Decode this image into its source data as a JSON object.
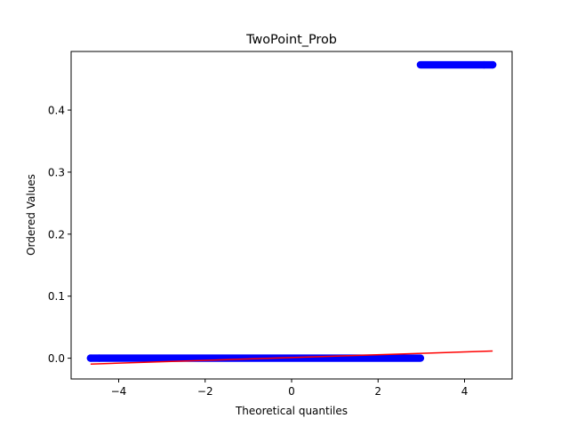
{
  "chart_data": {
    "type": "scatter",
    "title": "TwoPoint_Prob",
    "xlabel": "Theoretical quantiles",
    "ylabel": "Ordered Values",
    "xlim": [
      -5.1,
      5.1
    ],
    "ylim": [
      -0.0335,
      0.4945
    ],
    "xticks": [
      -4,
      -2,
      0,
      2,
      4
    ],
    "yticks": [
      0.0,
      0.1,
      0.2,
      0.3,
      0.4
    ],
    "xtick_labels": [
      "−4",
      "−2",
      "0",
      "2",
      "4"
    ],
    "ytick_labels": [
      "0.0",
      "0.1",
      "0.2",
      "0.3",
      "0.4"
    ],
    "grid": false,
    "legend": "none",
    "series": [
      {
        "kind": "points",
        "color": "#0000ff",
        "segments": [
          {
            "x_start": -4.65,
            "x_end": 2.98,
            "y": 0.0
          },
          {
            "x_start": 2.98,
            "x_end": 4.65,
            "y": 0.473
          }
        ],
        "points": [
          {
            "x": -4.65,
            "y": 0.0
          },
          {
            "x": -4.45,
            "y": 0.0
          },
          {
            "x": 4.45,
            "y": 0.473
          },
          {
            "x": 4.65,
            "y": 0.473
          }
        ]
      },
      {
        "kind": "line",
        "color": "#ff0000",
        "x": [
          -4.65,
          4.65
        ],
        "y": [
          -0.0095,
          0.0115
        ]
      }
    ]
  }
}
